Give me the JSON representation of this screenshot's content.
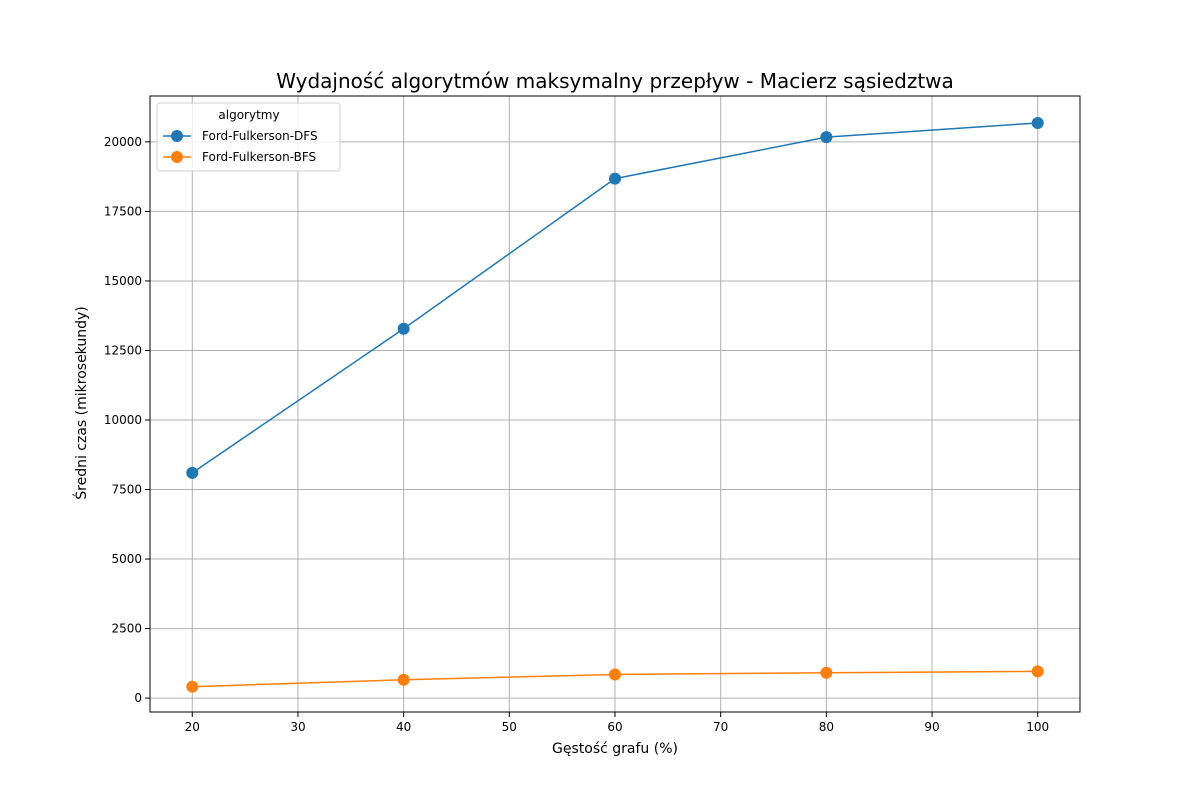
{
  "chart_data": {
    "type": "line",
    "title": "Wydajność algorytmów maksymalny przepływ - Macierz sąsiedztwa",
    "xlabel": "Gęstość grafu (%)",
    "ylabel": "Średni czas (mikrosekundy)",
    "x": [
      20,
      40,
      60,
      80,
      100
    ],
    "xlim": [
      16,
      104
    ],
    "ylim": [
      -500,
      21650
    ],
    "xticks": [
      20,
      30,
      40,
      50,
      60,
      70,
      80,
      90,
      100
    ],
    "yticks": [
      0,
      2500,
      5000,
      7500,
      10000,
      12500,
      15000,
      17500,
      20000
    ],
    "grid": true,
    "legend": {
      "title": "algorytmy",
      "placement": "top-left"
    },
    "series": [
      {
        "name": "Ford-Fulkerson-DFS",
        "color": "#1f77b4",
        "values": [
          8100,
          13280,
          18680,
          20170,
          20680
        ]
      },
      {
        "name": "Ford-Fulkerson-BFS",
        "color": "#ff7f0e",
        "values": [
          410,
          660,
          850,
          910,
          960
        ]
      }
    ]
  }
}
